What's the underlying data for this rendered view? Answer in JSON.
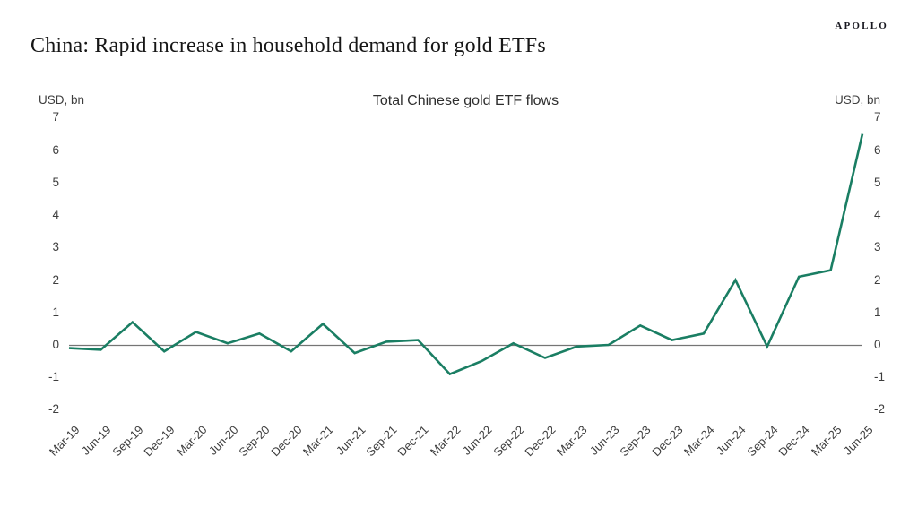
{
  "logo": {
    "text": "APOLLO"
  },
  "header": {
    "title": "China: Rapid increase in household demand for gold ETFs"
  },
  "chart": {
    "title": "Total Chinese gold ETF flows",
    "left_unit_label": "USD, bn",
    "right_unit_label": "USD, bn"
  },
  "chart_data": {
    "type": "line",
    "title": "Total Chinese gold ETF flows",
    "ylabel": "USD, bn",
    "categories": [
      "Mar-19",
      "Jun-19",
      "Sep-19",
      "Dec-19",
      "Mar-20",
      "Jun-20",
      "Sep-20",
      "Dec-20",
      "Mar-21",
      "Jun-21",
      "Sep-21",
      "Dec-21",
      "Mar-22",
      "Jun-22",
      "Sep-22",
      "Dec-22",
      "Mar-23",
      "Jun-23",
      "Sep-23",
      "Dec-23",
      "Mar-24",
      "Jun-24",
      "Sep-24",
      "Dec-24",
      "Mar-25",
      "Jun-25"
    ],
    "values": [
      -0.1,
      -0.15,
      0.7,
      -0.2,
      0.4,
      0.05,
      0.35,
      -0.2,
      0.65,
      -0.25,
      0.1,
      0.15,
      -0.9,
      -0.5,
      0.05,
      -0.4,
      -0.05,
      0,
      0.6,
      0.15,
      0.35,
      2,
      -0.05,
      2.1,
      2.3,
      6.5
    ],
    "ylim": [
      -2,
      7
    ],
    "yticks": [
      7,
      6,
      5,
      4,
      3,
      2,
      1,
      0,
      -1,
      -2
    ],
    "grid": false,
    "legend_position": "none",
    "line_color": "#1a7e63",
    "zero_line_color": "#757575"
  }
}
